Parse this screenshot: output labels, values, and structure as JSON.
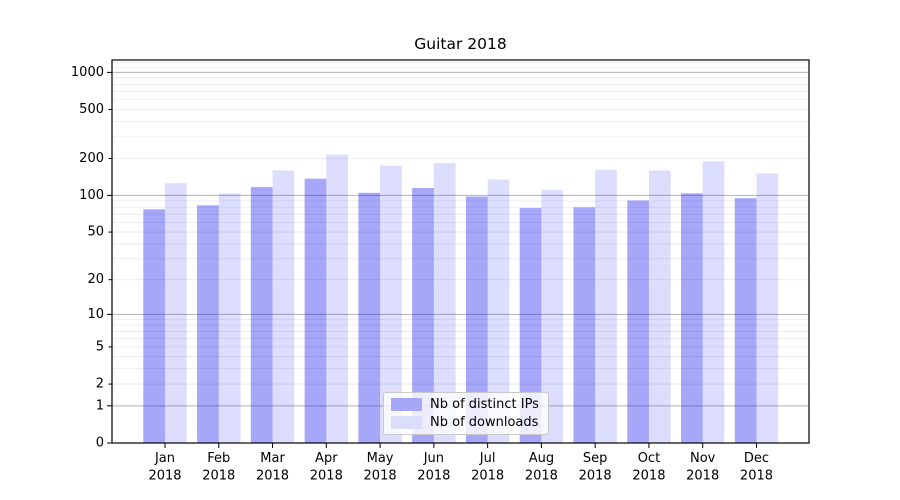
{
  "chart_data": {
    "type": "bar",
    "title": "Guitar 2018",
    "categories": [
      "Jan",
      "Feb",
      "Mar",
      "Apr",
      "May",
      "Jun",
      "Jul",
      "Aug",
      "Sep",
      "Oct",
      "Nov",
      "Dec"
    ],
    "category_year": "2018",
    "series": [
      {
        "name": "Nb of distinct IPs",
        "color_hex": "#a7a7f8",
        "fill_base": "#0000f0",
        "fill_alpha": 0.345,
        "values": [
          77,
          83,
          117,
          137,
          105,
          115,
          98,
          79,
          80,
          91,
          104,
          95
        ]
      },
      {
        "name": "Nb of downloads",
        "color_hex": "#dcdcfb",
        "fill_base": "#0000f0",
        "fill_alpha": 0.135,
        "values": [
          126,
          104,
          160,
          215,
          175,
          184,
          135,
          111,
          162,
          160,
          190,
          151
        ]
      }
    ],
    "xlabel": "",
    "ylabel": "",
    "y_axis": {
      "scale": "log1p",
      "tick_values": [
        0,
        1,
        2,
        5,
        10,
        20,
        50,
        100,
        200,
        500,
        1000
      ],
      "tick_labels": [
        "0",
        "1",
        "2",
        "5",
        "10",
        "20",
        "50",
        "100",
        "200",
        "500",
        "1000"
      ],
      "major_tick_values": [
        0,
        1,
        10,
        100,
        1000
      ],
      "ylim": [
        0,
        1260
      ]
    },
    "grid": {
      "on": true,
      "major_color": "#b3b3b3",
      "minor_color": "#e9e9e9"
    },
    "legend": {
      "position": "lower center"
    },
    "axes": {
      "spine_color": "#000000",
      "tick_color": "#000000",
      "label_color": "#000000"
    }
  }
}
